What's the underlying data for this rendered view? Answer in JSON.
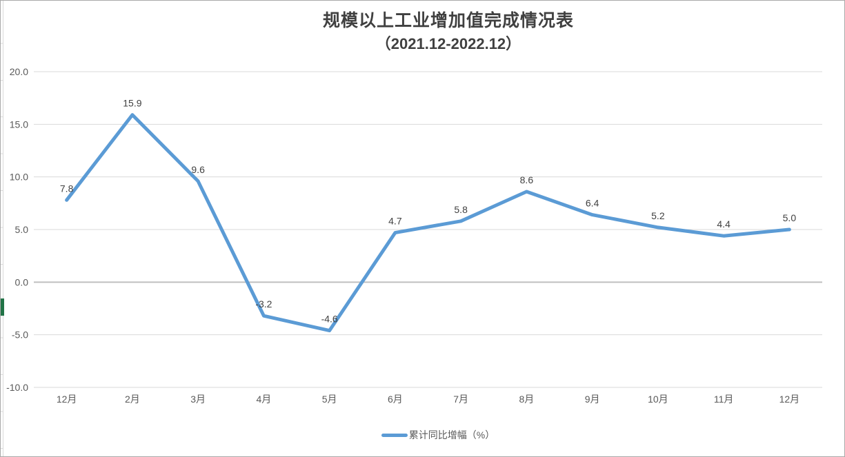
{
  "window": {
    "background": "#FFFFFF",
    "border_color": "#A8A8A8",
    "green_marker_color": "#217346"
  },
  "chart_data": {
    "type": "line",
    "title_line1": "规模以上工业增加值完成情况表",
    "title_line2": "（2021.12-2022.12）",
    "categories": [
      "12月",
      "2月",
      "3月",
      "4月",
      "5月",
      "6月",
      "7月",
      "8月",
      "9月",
      "10月",
      "11月",
      "12月"
    ],
    "series": [
      {
        "name": "累计同比增幅（%）",
        "values": [
          7.8,
          15.9,
          9.6,
          -3.2,
          -4.6,
          4.7,
          5.8,
          8.6,
          6.4,
          5.2,
          4.4,
          5.0
        ],
        "color": "#5B9BD5"
      }
    ],
    "data_labels": [
      "7.8",
      "15.9",
      "9.6",
      "-3.2",
      "-4.6",
      "4.7",
      "5.8",
      "8.6",
      "6.4",
      "5.2",
      "4.4",
      "5.0"
    ],
    "ylim": [
      -10,
      20
    ],
    "y_tick_step": 5,
    "y_ticks": [
      "20.0",
      "15.0",
      "10.0",
      "5.0",
      "0.0",
      "-5.0",
      "-10.0"
    ],
    "grid": true,
    "grid_color": "#D9D9D9",
    "axis_line_color": "#BFBFBF",
    "tick_color": "#595959",
    "label_color": "#404040",
    "legend_position": "bottom"
  }
}
